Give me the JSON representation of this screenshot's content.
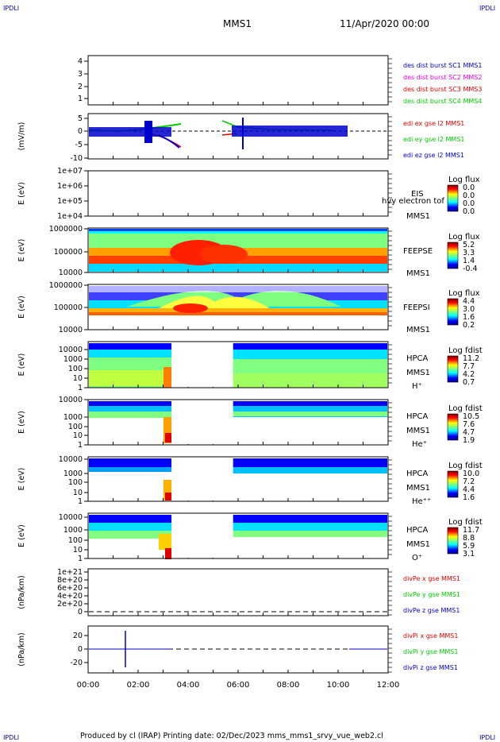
{
  "corner_tag": "IPDLI",
  "header": {
    "spacecraft": "MMS1",
    "date": "11/Apr/2020 00:00"
  },
  "footer": {
    "text": "Produced by cl (IRAP)    Printing date: 02/Dec/2023    mms_mms1_srvy_vue_web2.cl"
  },
  "time_axis": {
    "ticks": [
      "00:00",
      "02:00",
      "04:00",
      "06:00",
      "08:00",
      "10:00",
      "12:00"
    ],
    "range_hours": [
      0,
      12
    ]
  },
  "colors": {
    "red": "#e00000",
    "magenta": "#e000e0",
    "green": "#00cc00",
    "blue": "#0000cc",
    "black": "#000000"
  },
  "panels": [
    {
      "id": "burst",
      "yticks": [
        "4",
        "3",
        "2",
        "1"
      ],
      "ylabel": "",
      "labels": [
        {
          "text": "des dist burst SC1 MMS1",
          "color": "#0000cc"
        },
        {
          "text": "des dist burst SC2 MMS2",
          "color": "#e000e0"
        },
        {
          "text": "des dist burst SC3 MMS3",
          "color": "#e00000"
        },
        {
          "text": "des dist burst SC4 MMS4",
          "color": "#00cc00"
        }
      ]
    },
    {
      "id": "edi",
      "yticks": [
        "5",
        "0",
        "-5",
        "-10"
      ],
      "ylabel": "(mV/m)",
      "labels": [
        {
          "text": "edi ex gse l2 MMS1",
          "color": "#e00000"
        },
        {
          "text": "edi ey gse l2 MMS1",
          "color": "#00cc00"
        },
        {
          "text": "edi ez gse l2 MMS1",
          "color": "#0000cc"
        }
      ]
    },
    {
      "id": "eis",
      "yticks": [
        "1e+07",
        "1e+06",
        "1e+05",
        "1e+04"
      ],
      "ylabel": "E (eV)",
      "labels": [
        {
          "text": "EIS",
          "color": "#000000"
        },
        {
          "text": "MMS1",
          "color": "#000000"
        }
      ],
      "overlay": "hvy electron tof",
      "colorbar": {
        "title": "Log flux",
        "values": [
          "0.0",
          "0.0",
          "0.0",
          "0.0"
        ]
      }
    },
    {
      "id": "feepse",
      "yticks": [
        "1000000",
        "100000",
        "10000"
      ],
      "ylabel": "E (eV)",
      "labels": [
        {
          "text": "FEEPSE",
          "color": "#000000"
        },
        {
          "text": "MMS1",
          "color": "#000000"
        }
      ],
      "colorbar": {
        "title": "Log flux",
        "values": [
          "5.2",
          "3.3",
          "1.4",
          "-0.4"
        ]
      }
    },
    {
      "id": "feepsi",
      "yticks": [
        "1000000",
        "100000",
        "10000"
      ],
      "ylabel": "E (eV)",
      "labels": [
        {
          "text": "FEEPSI",
          "color": "#000000"
        },
        {
          "text": "MMS1",
          "color": "#000000"
        }
      ],
      "colorbar": {
        "title": "Log flux",
        "values": [
          "4.4",
          "3.0",
          "1.6",
          "0.2"
        ]
      }
    },
    {
      "id": "hpca_h",
      "yticks": [
        "10000",
        "1000",
        "100",
        "10",
        "1"
      ],
      "ylabel": "E (eV)",
      "labels": [
        {
          "text": "HPCA",
          "color": "#000000"
        },
        {
          "text": "MMS1",
          "color": "#000000"
        },
        {
          "text": "H⁺",
          "color": "#000000"
        }
      ],
      "colorbar": {
        "title": "Log fdist",
        "values": [
          "11.2",
          "7.7",
          "4.2",
          "0.7"
        ]
      }
    },
    {
      "id": "hpca_he",
      "yticks": [
        "10000",
        "1000",
        "100",
        "10",
        "1"
      ],
      "ylabel": "E (eV)",
      "labels": [
        {
          "text": "HPCA",
          "color": "#000000"
        },
        {
          "text": "MMS1",
          "color": "#000000"
        },
        {
          "text": "He⁺",
          "color": "#000000"
        }
      ],
      "colorbar": {
        "title": "Log fdist",
        "values": [
          "10.5",
          "7.6",
          "4.7",
          "1.9"
        ]
      }
    },
    {
      "id": "hpca_hepp",
      "yticks": [
        "10000",
        "1000",
        "100",
        "10",
        "1"
      ],
      "ylabel": "E (eV)",
      "labels": [
        {
          "text": "HPCA",
          "color": "#000000"
        },
        {
          "text": "MMS1",
          "color": "#000000"
        },
        {
          "text": "He⁺⁺",
          "color": "#000000"
        }
      ],
      "colorbar": {
        "title": "Log fdist",
        "values": [
          "10.0",
          "7.2",
          "4.4",
          "1.6"
        ]
      }
    },
    {
      "id": "hpca_o",
      "yticks": [
        "10000",
        "1000",
        "100",
        "10",
        "1"
      ],
      "ylabel": "E (eV)",
      "labels": [
        {
          "text": "HPCA",
          "color": "#000000"
        },
        {
          "text": "MMS1",
          "color": "#000000"
        },
        {
          "text": "O⁺",
          "color": "#000000"
        }
      ],
      "colorbar": {
        "title": "Log fdist",
        "values": [
          "11.7",
          "8.8",
          "5.9",
          "3.1"
        ]
      }
    },
    {
      "id": "divpe",
      "yticks": [
        "1e+21",
        "8e+20",
        "6e+20",
        "4e+20",
        "2e+20",
        "0"
      ],
      "ylabel": "(nPa/km)",
      "labels": [
        {
          "text": "divPe x gse MMS1",
          "color": "#e00000"
        },
        {
          "text": "divPe y gse MMS1",
          "color": "#00cc00"
        },
        {
          "text": "divPe z gse MMS1",
          "color": "#0000cc"
        }
      ]
    },
    {
      "id": "divpi",
      "yticks": [
        "20",
        "0",
        "-20"
      ],
      "ylabel": "(nPa/km)",
      "labels": [
        {
          "text": "divPi x gse MMS1",
          "color": "#e00000"
        },
        {
          "text": "divPi y gse MMS1",
          "color": "#00cc00"
        },
        {
          "text": "divPi z gse MMS1",
          "color": "#0000cc"
        }
      ]
    }
  ],
  "chart_data": {
    "type": "line",
    "x_unit": "hours UT",
    "xlim": [
      0,
      12
    ],
    "burst_intervals": [],
    "data_gaps_hpca_hours": [
      [
        3.4,
        5.8
      ]
    ],
    "edi_coverage_hours": [
      [
        0.0,
        3.4
      ],
      [
        5.8,
        10.5
      ]
    ],
    "divpi_spike_hour": 1.5,
    "divpi_z_spike_range": [
      -25,
      28
    ]
  }
}
